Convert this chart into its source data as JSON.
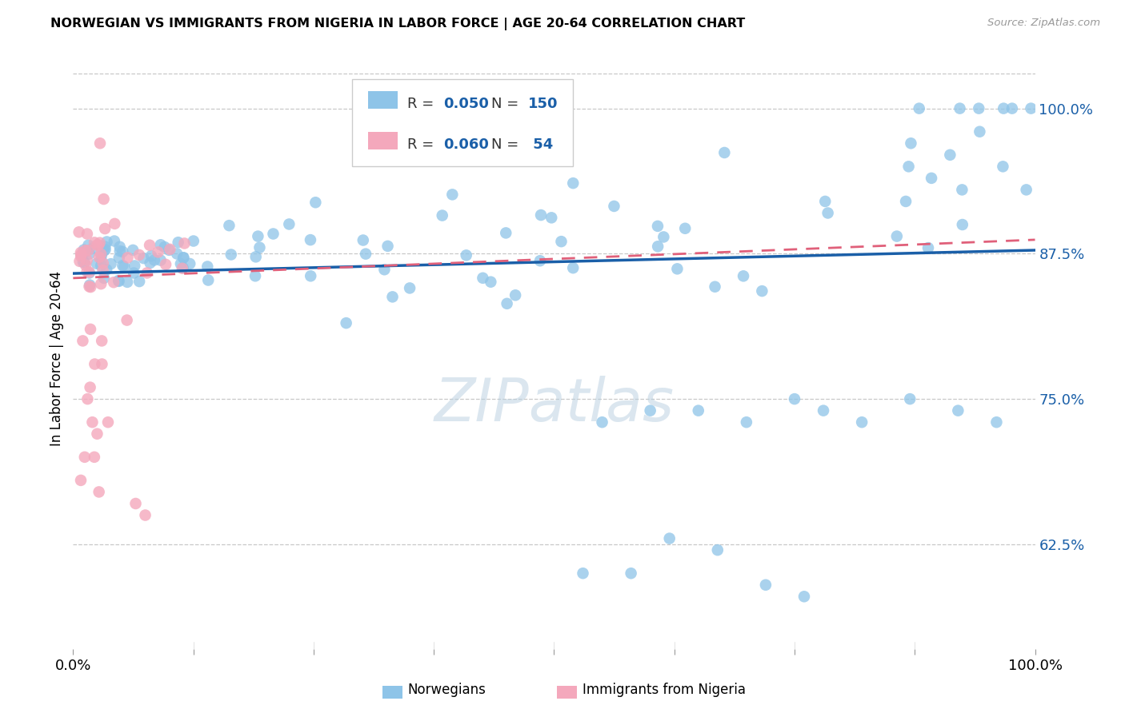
{
  "title": "NORWEGIAN VS IMMIGRANTS FROM NIGERIA IN LABOR FORCE | AGE 20-64 CORRELATION CHART",
  "source": "Source: ZipAtlas.com",
  "ylabel": "In Labor Force | Age 20-64",
  "r_norwegian": 0.05,
  "n_norwegian": 150,
  "r_nigeria": 0.06,
  "n_nigeria": 54,
  "color_norwegian": "#8ec4e8",
  "color_nigeria": "#f4a8bc",
  "color_trend_norwegian": "#1a5fa8",
  "color_trend_nigeria": "#e0607a",
  "xmin": 0.0,
  "xmax": 1.0,
  "ymin": 0.535,
  "ymax": 1.035,
  "yticks": [
    0.625,
    0.75,
    0.875,
    1.0
  ],
  "ytick_labels": [
    "62.5%",
    "75.0%",
    "87.5%",
    "100.0%"
  ],
  "watermark": "ZIPatlas",
  "trend_nor_x0": 0.0,
  "trend_nor_y0": 0.858,
  "trend_nor_x1": 1.0,
  "trend_nor_y1": 0.878,
  "trend_nig_x0": 0.0,
  "trend_nig_y0": 0.854,
  "trend_nig_x1": 1.0,
  "trend_nig_y1": 0.887
}
